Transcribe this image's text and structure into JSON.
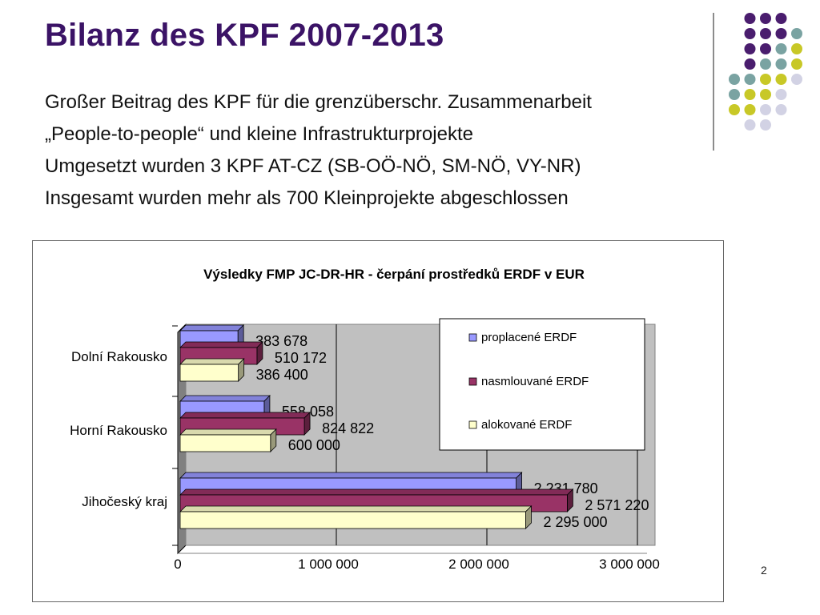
{
  "slide": {
    "title": "Bilanz des KPF 2007-2013",
    "bullets": [
      "Großer Beitrag des KPF für die grenzüberschr. Zusammenarbeit",
      "„People-to-people“  und kleine Infrastrukturprojekte",
      "Umgesetzt wurden 3 KPF AT-CZ (SB-OÖ-NÖ, SM-NÖ, VY-NR)",
      "Insgesamt wurden mehr als 700 Kleinprojekte abgeschlossen"
    ],
    "page_number": "2"
  },
  "colors": {
    "title": "#3b1366",
    "decor_purple": "#4a1d6e",
    "decor_teal": "#7aa3a2",
    "decor_yellow": "#c8c827",
    "decor_lavender": "#d2d2e4"
  },
  "chart_data": {
    "type": "bar",
    "orientation": "horizontal",
    "style": "3d",
    "title": "Výsledky FMP JC-DR-HR - čerpání prostředků ERDF v EUR",
    "categories": [
      "Dolní Rakousko",
      "Horní Rakousko",
      "Jihočeský kraj"
    ],
    "series": [
      {
        "name": "proplacené ERDF",
        "color": "#9999ff",
        "values": [
          383678,
          558058,
          2231780
        ],
        "labels": [
          "383 678",
          "558 058",
          "2 231 780"
        ]
      },
      {
        "name": "nasmlouvané ERDF",
        "color": "#993366",
        "values": [
          510172,
          824822,
          2571220
        ],
        "labels": [
          "510 172",
          "824 822",
          "2 571 220"
        ]
      },
      {
        "name": "alokované ERDF",
        "color": "#ffffcc",
        "values": [
          386400,
          600000,
          2295000
        ],
        "labels": [
          "386 400",
          "600 000",
          "2 295 000"
        ]
      }
    ],
    "xlim": [
      0,
      3000000
    ],
    "xticks": [
      0,
      1000000,
      2000000,
      3000000
    ],
    "xtick_labels": [
      "0",
      "1 000 000",
      "2 000 000",
      "3 000 000"
    ],
    "plot_background": "#c0c0c0",
    "grid": true,
    "legend": "upper-right inside plot"
  }
}
